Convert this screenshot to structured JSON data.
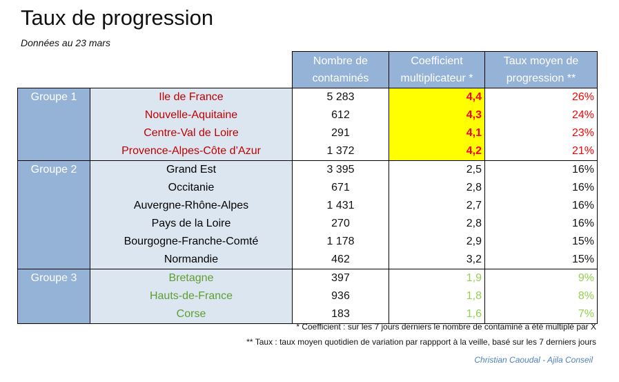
{
  "title": "Taux de progression",
  "subtitle": "Données au 23 mars",
  "headers": {
    "nombre": [
      "Nombre de",
      "contaminés"
    ],
    "coeff": [
      "Coefficient",
      "multiplicateur *"
    ],
    "taux": [
      "Taux moyen de",
      "progression **"
    ]
  },
  "groups": [
    {
      "label": "Groupe 1",
      "rows": [
        {
          "region": "Ile de France",
          "nombre": "5 283",
          "coeff": "4,4",
          "taux": "26%"
        },
        {
          "region": "Nouvelle-Aquitaine",
          "nombre": "612",
          "coeff": "4,3",
          "taux": "24%"
        },
        {
          "region": "Centre-Val de Loire",
          "nombre": "291",
          "coeff": "4,1",
          "taux": "23%"
        },
        {
          "region": "Provence-Alpes-Côte d’Azur",
          "nombre": "1 372",
          "coeff": "4,2",
          "taux": "21%"
        }
      ]
    },
    {
      "label": "Groupe 2",
      "rows": [
        {
          "region": "Grand Est",
          "nombre": "3 395",
          "coeff": "2,5",
          "taux": "16%"
        },
        {
          "region": "Occitanie",
          "nombre": "671",
          "coeff": "2,8",
          "taux": "16%"
        },
        {
          "region": "Auvergne-Rhône-Alpes",
          "nombre": "1 431",
          "coeff": "2,7",
          "taux": "16%"
        },
        {
          "region": "Pays de la Loire",
          "nombre": "270",
          "coeff": "2,8",
          "taux": "16%"
        },
        {
          "region": "Bourgogne-Franche-Comté",
          "nombre": "1 178",
          "coeff": "2,9",
          "taux": "15%"
        },
        {
          "region": "Normandie",
          "nombre": "462",
          "coeff": "3,2",
          "taux": "15%"
        }
      ]
    },
    {
      "label": "Groupe 3",
      "rows": [
        {
          "region": "Bretagne",
          "nombre": "397",
          "coeff": "1,9",
          "taux": "9%"
        },
        {
          "region": "Hauts-de-France",
          "nombre": "936",
          "coeff": "1,8",
          "taux": "8%"
        },
        {
          "region": "Corse",
          "nombre": "183",
          "coeff": "1,6",
          "taux": "7%"
        }
      ]
    }
  ],
  "notes": [
    "* Coefficient : sur les 7 jours derniers le nombre de contaminé a été multiplé par X",
    "** Taux : taux moyen quotidien de variation par rappport à la veille, basé sur les 7 derniers jours"
  ],
  "credit": "Christian Caoudal - Ajila Conseil"
}
